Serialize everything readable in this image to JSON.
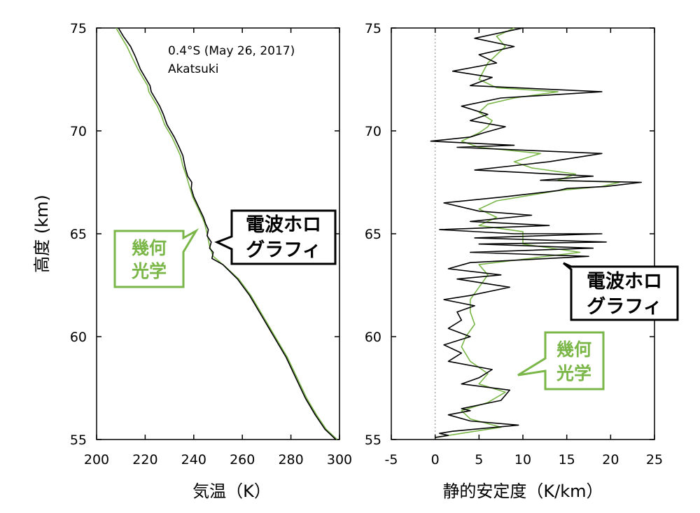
{
  "chart_data": [
    {
      "type": "line",
      "xlabel": "気温（K）",
      "ylabel": "高度 (km)",
      "xlim": [
        200,
        300
      ],
      "ylim": [
        55,
        75
      ],
      "xticks": [
        200,
        220,
        240,
        260,
        280,
        300
      ],
      "yticks": [
        55,
        60,
        65,
        70,
        75
      ],
      "annotation": [
        "0.4°S (May 26, 2017)",
        "Akatsuki"
      ],
      "callouts": {
        "radio": [
          "電波ホロ",
          "グラフィ"
        ],
        "optical": [
          "幾何",
          "光学"
        ]
      },
      "series": [
        {
          "key": "radio",
          "color": "#000000",
          "points": [
            [
              298.5,
              55
            ],
            [
              294,
              55.5
            ],
            [
              290,
              56.2
            ],
            [
              286,
              57
            ],
            [
              282,
              58
            ],
            [
              278,
              59
            ],
            [
              273,
              60
            ],
            [
              268,
              61
            ],
            [
              263,
              62
            ],
            [
              258,
              62.8
            ],
            [
              252,
              63.5
            ],
            [
              247.5,
              63.8
            ],
            [
              248,
              64.1
            ],
            [
              246.5,
              64.3
            ],
            [
              247.2,
              64.6
            ],
            [
              245.5,
              64.9
            ],
            [
              246,
              65.2
            ],
            [
              244.8,
              65.5
            ],
            [
              244,
              65.8
            ],
            [
              242,
              66.3
            ],
            [
              240,
              66.8
            ],
            [
              239,
              67.2
            ],
            [
              239.2,
              67.5
            ],
            [
              237.5,
              67.8
            ],
            [
              236.5,
              68.2
            ],
            [
              235.5,
              68.8
            ],
            [
              234,
              69.2
            ],
            [
              232,
              69.7
            ],
            [
              229,
              70.3
            ],
            [
              227.5,
              70.8
            ],
            [
              226,
              71.2
            ],
            [
              224.5,
              71.5
            ],
            [
              222.5,
              71.9
            ],
            [
              222,
              72.2
            ],
            [
              220,
              72.6
            ],
            [
              218,
              73
            ],
            [
              216,
              73.6
            ],
            [
              214,
              74.1
            ],
            [
              211,
              74.6
            ],
            [
              209,
              75
            ]
          ]
        },
        {
          "key": "optical",
          "color": "#7ab648",
          "points": [
            [
              299,
              55
            ],
            [
              294.5,
              55.5
            ],
            [
              290.5,
              56.2
            ],
            [
              286.5,
              57
            ],
            [
              282.5,
              58
            ],
            [
              278.5,
              59
            ],
            [
              273.5,
              60
            ],
            [
              268.5,
              61
            ],
            [
              263.5,
              62
            ],
            [
              258.5,
              62.8
            ],
            [
              253,
              63.4
            ],
            [
              248,
              63.9
            ],
            [
              246.5,
              64.4
            ],
            [
              245.5,
              65
            ],
            [
              244.5,
              65.5
            ],
            [
              243.5,
              65.8
            ],
            [
              241.5,
              66.3
            ],
            [
              239.5,
              66.8
            ],
            [
              238.2,
              67.3
            ],
            [
              237,
              67.8
            ],
            [
              235.5,
              68.3
            ],
            [
              234.5,
              68.8
            ],
            [
              233,
              69.2
            ],
            [
              231,
              69.7
            ],
            [
              228,
              70.3
            ],
            [
              226.5,
              70.8
            ],
            [
              225,
              71.2
            ],
            [
              223,
              71.6
            ],
            [
              221.5,
              71.9
            ],
            [
              221,
              72.2
            ],
            [
              219,
              72.6
            ],
            [
              217,
              73
            ],
            [
              214.5,
              73.6
            ],
            [
              212.5,
              74.1
            ],
            [
              210,
              74.6
            ],
            [
              208,
              75
            ]
          ]
        }
      ]
    },
    {
      "type": "line",
      "xlabel": "静的安定度（K/km）",
      "ylabel": "",
      "xlim": [
        -5,
        25
      ],
      "ylim": [
        55,
        75
      ],
      "xticks": [
        -5,
        0,
        5,
        10,
        15,
        20,
        25
      ],
      "yticks": [
        55,
        60,
        65,
        70,
        75
      ],
      "reference_line_x": 0,
      "callouts": {
        "radio": [
          "電波ホロ",
          "グラフィ"
        ],
        "optical": [
          "幾何",
          "光学"
        ]
      },
      "series": [
        {
          "key": "radio",
          "color": "#000000",
          "points": [
            [
              0,
              55.1
            ],
            [
              1.5,
              55.2
            ],
            [
              0.5,
              55.3
            ],
            [
              2,
              55.4
            ],
            [
              9.5,
              55.7
            ],
            [
              4,
              55.9
            ],
            [
              1.5,
              56.2
            ],
            [
              4,
              56.4
            ],
            [
              3,
              56.5
            ],
            [
              7.5,
              56.9
            ],
            [
              8.5,
              57.4
            ],
            [
              3,
              57.7
            ],
            [
              5,
              58
            ],
            [
              6.5,
              58.4
            ],
            [
              1.5,
              58.8
            ],
            [
              3,
              59.2
            ],
            [
              1,
              59.6
            ],
            [
              4,
              60
            ],
            [
              1.5,
              60.4
            ],
            [
              3,
              60.8
            ],
            [
              2.5,
              61.2
            ],
            [
              4.5,
              61.5
            ],
            [
              1,
              61.8
            ],
            [
              4,
              62
            ],
            [
              8.5,
              62.4
            ],
            [
              2.5,
              62.8
            ],
            [
              7.5,
              63
            ],
            [
              1.5,
              63.3
            ],
            [
              4,
              63.6
            ],
            [
              17.5,
              63.9
            ],
            [
              4,
              64.1
            ],
            [
              18,
              64.3
            ],
            [
              5,
              64.5
            ],
            [
              19.5,
              64.6
            ],
            [
              4.5,
              64.8
            ],
            [
              19,
              65
            ],
            [
              9,
              65
            ],
            [
              0.5,
              65.2
            ],
            [
              13,
              65.4
            ],
            [
              4,
              65.6
            ],
            [
              11,
              65.9
            ],
            [
              5,
              66.1
            ],
            [
              1,
              66.5
            ],
            [
              8,
              66.8
            ],
            [
              14,
              67.1
            ],
            [
              15,
              67.2
            ],
            [
              19.5,
              67.3
            ],
            [
              23.5,
              67.5
            ],
            [
              12,
              67.6
            ],
            [
              18,
              67.8
            ],
            [
              4.5,
              68.1
            ],
            [
              13,
              68.5
            ],
            [
              19,
              68.9
            ],
            [
              2.5,
              69.2
            ],
            [
              9,
              69.3
            ],
            [
              -0.5,
              69.5
            ],
            [
              4,
              69.7
            ],
            [
              5.5,
              69.9
            ],
            [
              8,
              70.2
            ],
            [
              4,
              70.5
            ],
            [
              6,
              70.8
            ],
            [
              3,
              71.2
            ],
            [
              7.5,
              71.6
            ],
            [
              19,
              71.9
            ],
            [
              4,
              72.2
            ],
            [
              6.5,
              72.6
            ],
            [
              2,
              72.9
            ],
            [
              7,
              73.3
            ],
            [
              5,
              73.7
            ],
            [
              9,
              74.1
            ],
            [
              4.5,
              74.5
            ],
            [
              10,
              75
            ]
          ]
        },
        {
          "key": "optical",
          "color": "#7ab648",
          "points": [
            [
              0,
              55.1
            ],
            [
              3,
              55.3
            ],
            [
              7.5,
              55.6
            ],
            [
              4,
              56
            ],
            [
              3,
              56.4
            ],
            [
              6,
              56.8
            ],
            [
              8,
              57.3
            ],
            [
              5,
              57.7
            ],
            [
              6,
              58.2
            ],
            [
              4,
              58.8
            ],
            [
              3,
              59.5
            ],
            [
              3.5,
              60
            ],
            [
              4.5,
              60.6
            ],
            [
              4,
              61.2
            ],
            [
              4,
              61.8
            ],
            [
              5,
              62.4
            ],
            [
              6,
              63
            ],
            [
              5,
              63.5
            ],
            [
              16.5,
              64.1
            ],
            [
              10,
              64.5
            ],
            [
              10,
              65.1
            ],
            [
              5,
              65.4
            ],
            [
              7,
              65.8
            ],
            [
              5,
              66.2
            ],
            [
              7,
              66.6
            ],
            [
              14,
              67.1
            ],
            [
              19,
              67.3
            ],
            [
              21,
              67.5
            ],
            [
              14,
              67.6
            ],
            [
              16,
              67.9
            ],
            [
              11,
              68.2
            ],
            [
              9,
              68.5
            ],
            [
              12,
              68.9
            ],
            [
              5,
              69.2
            ],
            [
              3,
              69.5
            ],
            [
              5,
              69.9
            ],
            [
              6,
              70.2
            ],
            [
              6.5,
              70.5
            ],
            [
              5,
              70.9
            ],
            [
              6,
              71.3
            ],
            [
              9,
              71.6
            ],
            [
              14,
              71.9
            ],
            [
              7,
              72.1
            ],
            [
              5,
              72.5
            ],
            [
              5.5,
              72.9
            ],
            [
              6,
              73.3
            ],
            [
              7,
              73.7
            ],
            [
              8,
              74.1
            ],
            [
              7,
              74.6
            ],
            [
              9,
              75
            ]
          ]
        }
      ]
    }
  ]
}
